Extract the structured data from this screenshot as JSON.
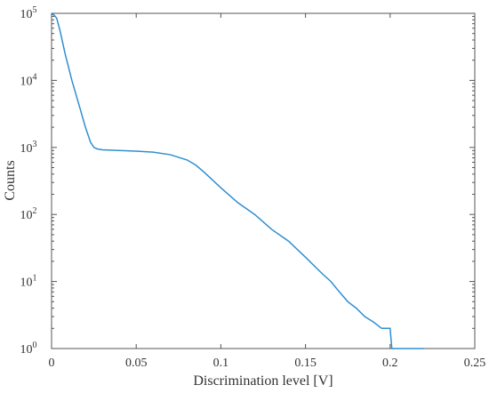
{
  "chart_data": {
    "type": "line",
    "xlabel": "Discrimination level [V]",
    "ylabel": "Counts",
    "xlim": [
      0,
      0.25
    ],
    "ylim": [
      1,
      100000
    ],
    "yscale": "log",
    "grid": false,
    "legend": "none",
    "line_color": "#2f8fd0",
    "x_ticks": [
      "0",
      "0.05",
      "0.1",
      "0.15",
      "0.2",
      "0.25"
    ],
    "x_tick_values": [
      0,
      0.05,
      0.1,
      0.15,
      0.2,
      0.25
    ],
    "y_ticks": [
      {
        "base": "10",
        "exp": "0",
        "value": 1
      },
      {
        "base": "10",
        "exp": "1",
        "value": 10
      },
      {
        "base": "10",
        "exp": "2",
        "value": 100
      },
      {
        "base": "10",
        "exp": "3",
        "value": 1000
      },
      {
        "base": "10",
        "exp": "4",
        "value": 10000
      },
      {
        "base": "10",
        "exp": "5",
        "value": 100000
      }
    ],
    "series": [
      {
        "x": [
          0,
          0.001,
          0.003,
          0.005,
          0.008,
          0.012,
          0.016,
          0.02,
          0.023,
          0.025,
          0.027,
          0.03,
          0.04,
          0.05,
          0.06,
          0.07,
          0.08,
          0.085,
          0.09,
          0.1,
          0.11,
          0.12,
          0.13,
          0.14,
          0.15,
          0.16,
          0.165,
          0.17,
          0.175,
          0.18,
          0.185,
          0.19,
          0.195,
          0.2,
          0.201,
          0.2011,
          0.22
        ],
        "y": [
          95000,
          97000,
          85000,
          55000,
          25000,
          10000,
          4500,
          2000,
          1200,
          1000,
          950,
          920,
          900,
          880,
          850,
          780,
          650,
          550,
          430,
          250,
          150,
          100,
          60,
          40,
          23,
          13,
          10,
          7,
          5,
          4,
          3,
          2.5,
          2,
          2,
          1,
          1,
          1
        ]
      }
    ]
  }
}
